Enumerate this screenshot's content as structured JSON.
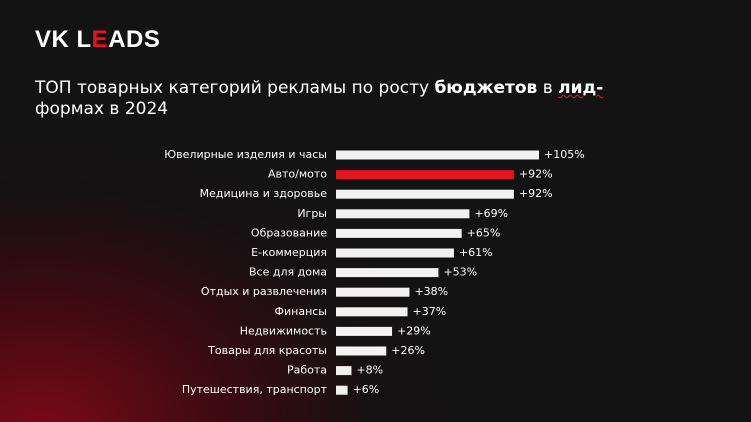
{
  "logo": [
    "VK L",
    "E",
    "ADS"
  ],
  "chart_data": {
    "type": "barh",
    "title": [
      "ТОП товарных категорий рекламы по росту ",
      "бюджетов",
      " в ",
      "лид-",
      "формах в 2024"
    ],
    "categories": [
      "Ювелирные изделия и часы",
      "Авто/мото",
      "Медицина и здоровье",
      "Игры",
      "Образование",
      "E-коммерция",
      "Все для дома",
      "Отдых и развлечения",
      "Финансы",
      "Недвижимость",
      "Товары для красоты",
      "Работа",
      "Путешествия, транспорт"
    ],
    "values": [
      105,
      92,
      92,
      69,
      65,
      61,
      53,
      38,
      37,
      29,
      26,
      8,
      6
    ],
    "value_labels": [
      "+105%",
      "+92%",
      "+92%",
      "+69%",
      "+65%",
      "+61%",
      "+53%",
      "+38%",
      "+37%",
      "+29%",
      "+26%",
      "+8%",
      "+6%"
    ],
    "colors": [
      "#f4f1f1",
      "#e8141b",
      "#f4f1f1",
      "#f4f1f1",
      "#f4f1f1",
      "#f4f1f1",
      "#f4f1f1",
      "#f4f1f1",
      "#f4f1f1",
      "#f4f1f1",
      "#f4f1f1",
      "#f4f1f1",
      "#f4f1f1"
    ]
  }
}
